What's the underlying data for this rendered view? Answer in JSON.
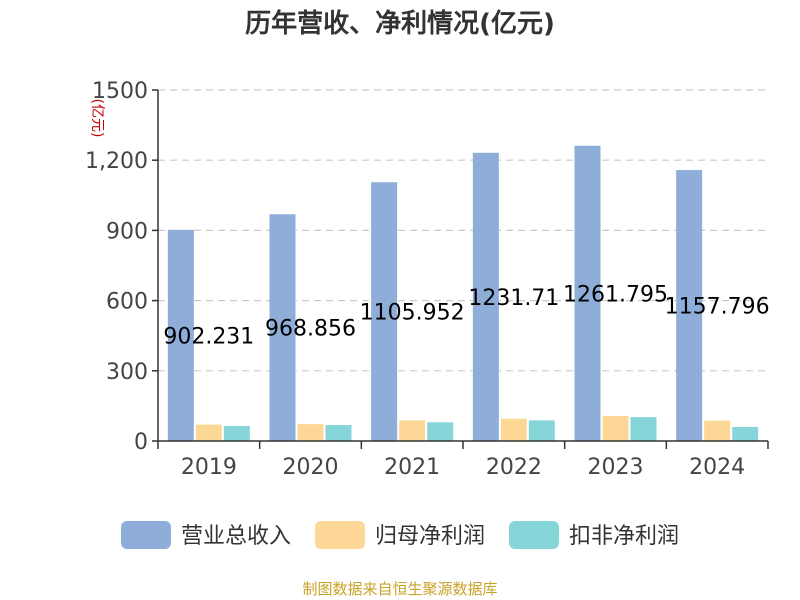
{
  "chart_data": {
    "type": "bar",
    "title": "历年营收、净利情况(亿元)",
    "ylabel": "(亿元)",
    "xlabel": "",
    "categories": [
      "2019",
      "2020",
      "2021",
      "2022",
      "2023",
      "2024"
    ],
    "ylim": [
      0,
      1500
    ],
    "yticks": [
      "0",
      "300",
      "600",
      "900",
      "1,200",
      "1500"
    ],
    "ytick_values": [
      0,
      300,
      600,
      900,
      1200,
      1500
    ],
    "grid": true,
    "legend_position": "bottom",
    "series": [
      {
        "name": "营业总收入",
        "color": "#8eadd9",
        "values": [
          902.231,
          968.856,
          1105.952,
          1231.71,
          1261.795,
          1157.796
        ],
        "data_labels": [
          "902.231",
          "968.856",
          "1105.952",
          "1231.71",
          "1261.795",
          "1157.796"
        ]
      },
      {
        "name": "归母净利润",
        "color": "#fdd795",
        "values": [
          70,
          72,
          88,
          95,
          107,
          87
        ]
      },
      {
        "name": "扣非净利润",
        "color": "#86d5d9",
        "values": [
          64,
          68,
          80,
          88,
          102,
          60
        ]
      }
    ]
  },
  "source_text": "制图数据来自恒生聚源数据库"
}
